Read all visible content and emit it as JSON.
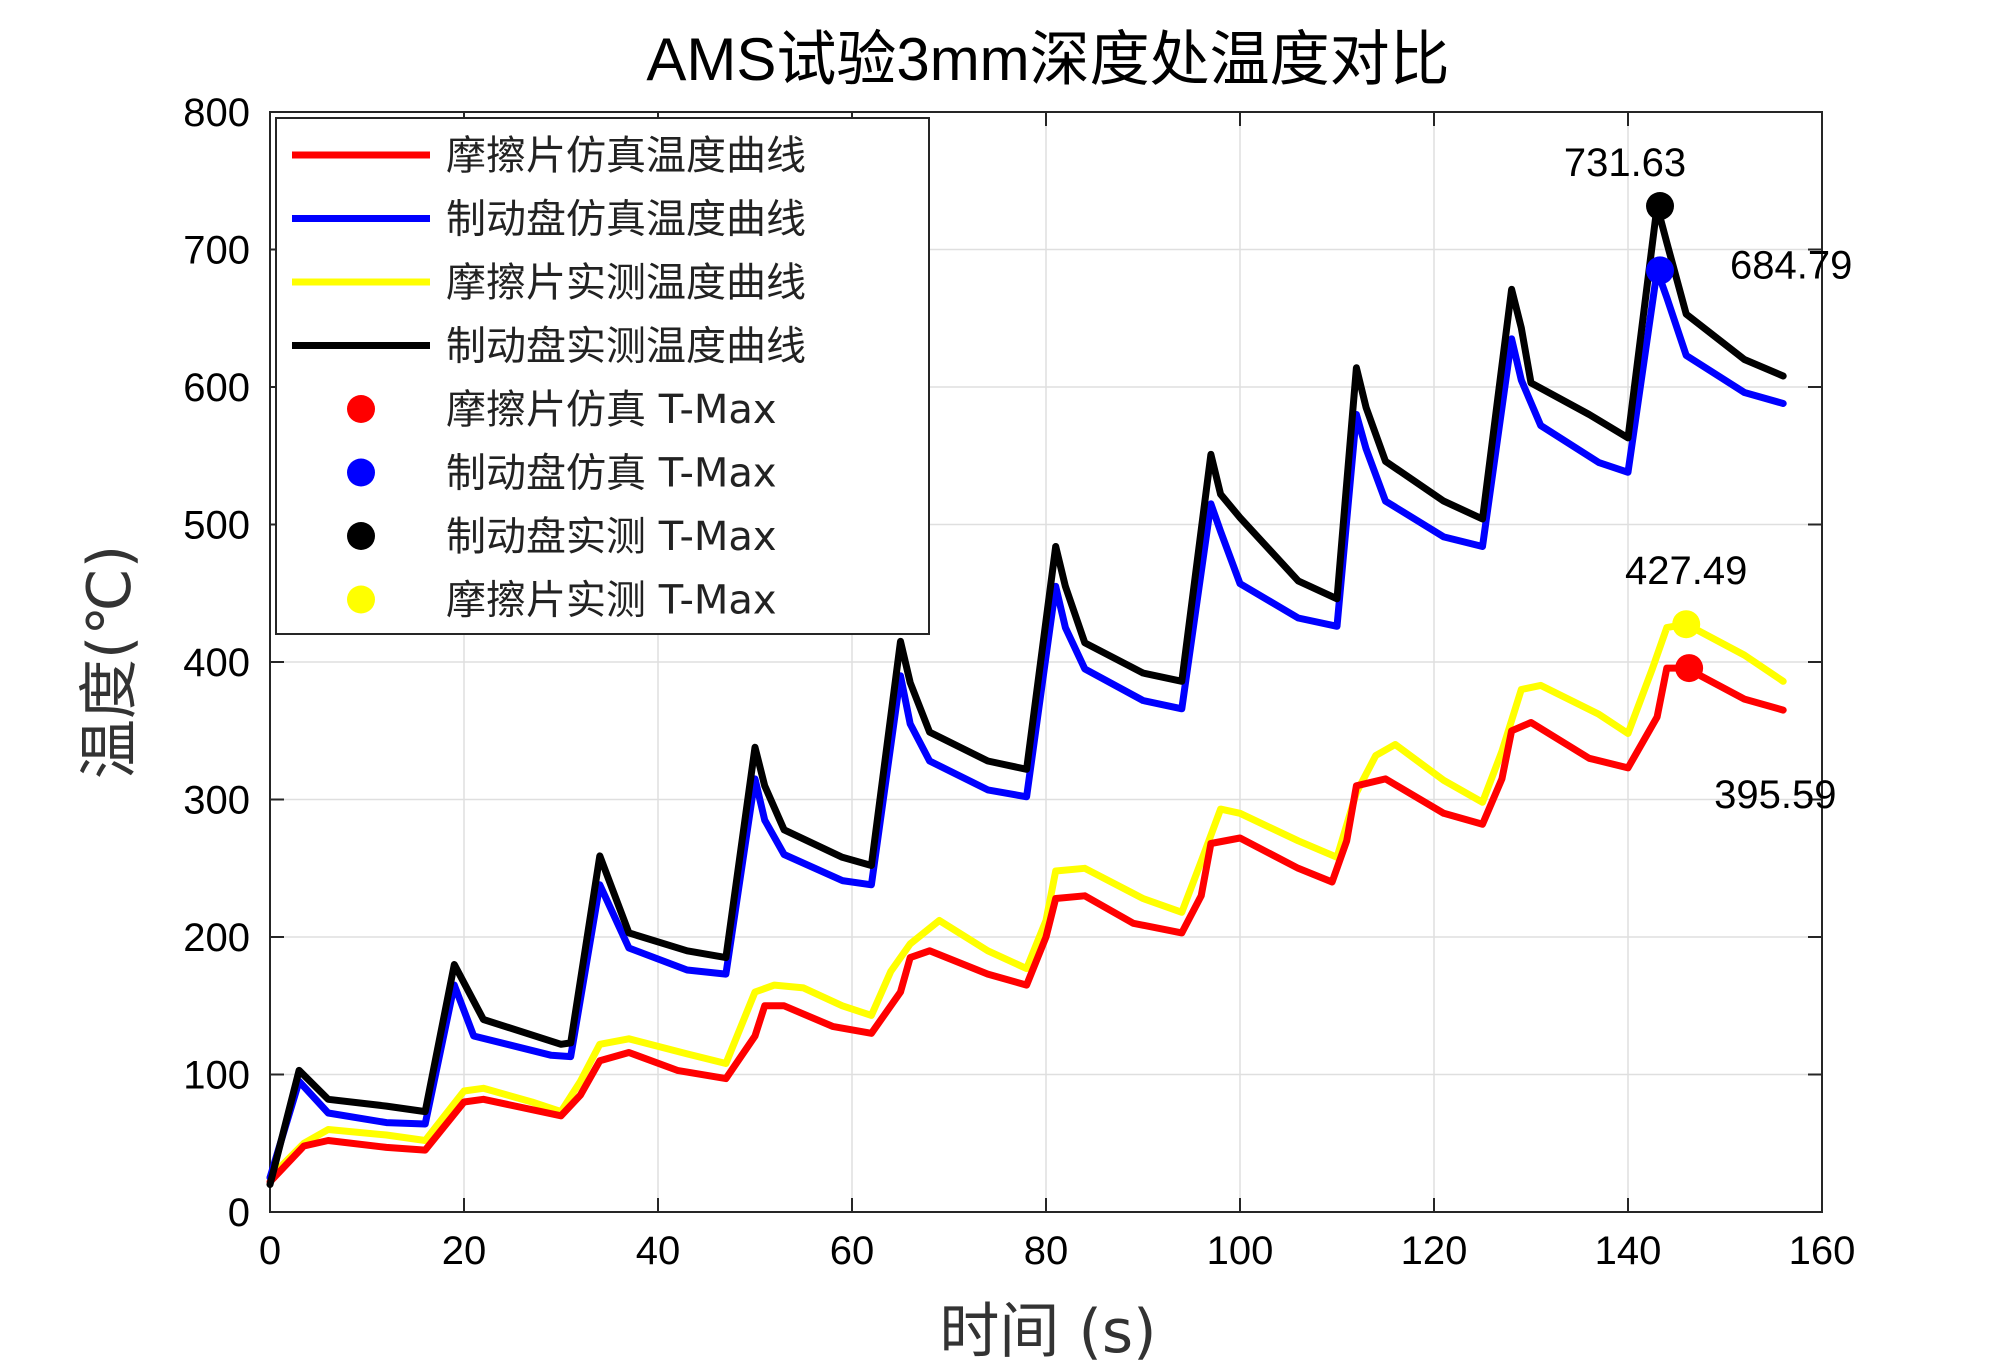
{
  "chart_data": {
    "type": "line",
    "title": "AMS试验3mm深度处温度对比",
    "xlabel": "时间 (s)",
    "ylabel": "温度(℃)",
    "xlim": [
      0,
      160
    ],
    "ylim": [
      0,
      800
    ],
    "xticks": [
      0,
      20,
      40,
      60,
      80,
      100,
      120,
      140,
      160
    ],
    "yticks": [
      0,
      100,
      200,
      300,
      400,
      500,
      600,
      700,
      800
    ],
    "xtick_labels": [
      "0",
      "20",
      "40",
      "60",
      "80",
      "100",
      "120",
      "140",
      "160"
    ],
    "ytick_labels": [
      "0",
      "100",
      "200",
      "300",
      "400",
      "500",
      "600",
      "700",
      "800"
    ],
    "grid": true,
    "legend_position": "top-left",
    "series": [
      {
        "name": "摩擦片仿真温度曲线",
        "color": "#ff0000",
        "x": [
          0,
          3.5,
          6,
          12,
          16,
          20,
          22,
          30,
          32,
          34,
          37,
          42,
          47,
          50,
          51,
          53,
          58,
          62,
          65,
          66,
          68,
          74,
          78,
          80,
          81,
          84,
          89,
          94,
          96,
          97,
          100,
          106,
          109.5,
          111,
          112,
          115,
          121,
          125,
          127,
          128,
          130,
          136,
          140,
          143,
          144,
          146,
          152,
          156
        ],
        "y": [
          22,
          48,
          52,
          47,
          45,
          80,
          82,
          70,
          85,
          110,
          116,
          103,
          97,
          128,
          150,
          150,
          135,
          130,
          160,
          185,
          190,
          173,
          165,
          200,
          228,
          230,
          210,
          203,
          230,
          268,
          272,
          250,
          240,
          270,
          310,
          315,
          290,
          282,
          315,
          350,
          356,
          330,
          323,
          360,
          395.59,
          395.59,
          373,
          365
        ]
      },
      {
        "name": "制动盘仿真温度曲线",
        "color": "#0000ff",
        "x": [
          0,
          3,
          6,
          12,
          16,
          19,
          21,
          29,
          31,
          34,
          37,
          43,
          47,
          50,
          51,
          53,
          59,
          62,
          65,
          66,
          68,
          74,
          78,
          81,
          82,
          84,
          90,
          94,
          97,
          98,
          100,
          106,
          110,
          112,
          113,
          115,
          121,
          125,
          128,
          129,
          131,
          137,
          140,
          143,
          144,
          146,
          152,
          156
        ],
        "y": [
          25,
          95,
          72,
          65,
          64,
          165,
          128,
          114,
          113,
          238,
          192,
          176,
          173,
          315,
          285,
          260,
          241,
          238,
          390,
          355,
          328,
          307,
          302,
          455,
          425,
          395,
          372,
          366,
          515,
          495,
          457,
          432,
          426,
          580,
          555,
          517,
          491,
          484,
          635,
          605,
          572,
          545,
          538,
          684.79,
          665,
          623,
          596,
          588
        ]
      },
      {
        "name": "摩擦片实测温度曲线",
        "color": "#ffff00",
        "x": [
          0,
          3.5,
          6,
          12,
          16,
          20,
          22,
          27,
          30,
          32,
          34,
          37,
          43,
          47,
          50,
          52,
          55,
          59,
          62,
          64,
          66,
          69,
          74,
          78,
          80,
          81,
          84,
          90,
          94,
          96,
          98,
          100,
          106,
          110,
          112,
          114,
          116,
          121,
          125,
          127,
          129,
          131,
          137,
          140,
          142.5,
          144,
          146,
          152,
          156
        ],
        "y": [
          25,
          50,
          60,
          56,
          52,
          88,
          90,
          80,
          73,
          95,
          122,
          126,
          115,
          108,
          160,
          165,
          163,
          150,
          143,
          175,
          195,
          212,
          190,
          177,
          212,
          248,
          250,
          228,
          218,
          255,
          293,
          290,
          270,
          258,
          305,
          332,
          340,
          314,
          298,
          335,
          380,
          383,
          362,
          348,
          395,
          425,
          427.49,
          405,
          386
        ]
      },
      {
        "name": "制动盘实测温度曲线",
        "color": "#000000",
        "x": [
          0,
          3,
          6,
          12,
          16,
          19,
          22,
          30,
          31,
          34,
          37,
          43,
          47,
          50,
          51,
          53,
          59,
          62,
          65,
          66,
          68,
          74,
          78,
          81,
          82,
          84,
          90,
          94,
          97,
          98,
          100,
          106,
          110,
          112,
          113,
          115,
          121,
          125,
          128,
          129,
          130,
          136,
          140,
          143,
          144,
          146,
          152,
          156
        ],
        "y": [
          20,
          103,
          82,
          77,
          73,
          180,
          140,
          122,
          123,
          259,
          203,
          190,
          185,
          338,
          310,
          278,
          258,
          252,
          415,
          385,
          349,
          328,
          322,
          484,
          455,
          414,
          392,
          386,
          551,
          522,
          505,
          459,
          446,
          614,
          585,
          546,
          517,
          504,
          671,
          643,
          603,
          580,
          563,
          731.63,
          705,
          653,
          620,
          608
        ]
      }
    ],
    "markers": [
      {
        "name": "摩擦片仿真 T-Max",
        "color": "#ff0000",
        "x": 146.3,
        "y": 395.59,
        "label": "395.59"
      },
      {
        "name": "制动盘仿真 T-Max",
        "color": "#0000ff",
        "x": 143.3,
        "y": 684.79,
        "label": "684.79"
      },
      {
        "name": "制动盘实测 T-Max",
        "color": "#000000",
        "x": 143.3,
        "y": 731.63,
        "label": "731.63"
      },
      {
        "name": "摩擦片实测 T-Max",
        "color": "#ffff00",
        "x": 146.0,
        "y": 427.49,
        "label": "427.49"
      }
    ],
    "legend": [
      {
        "label": "摩擦片仿真温度曲线",
        "kind": "line",
        "color": "#ff0000"
      },
      {
        "label": "制动盘仿真温度曲线",
        "kind": "line",
        "color": "#0000ff"
      },
      {
        "label": "摩擦片实测温度曲线",
        "kind": "line",
        "color": "#ffff00"
      },
      {
        "label": "制动盘实测温度曲线",
        "kind": "line",
        "color": "#000000"
      },
      {
        "label": "摩擦片仿真 T-Max",
        "kind": "marker",
        "color": "#ff0000"
      },
      {
        "label": "制动盘仿真 T-Max",
        "kind": "marker",
        "color": "#0000ff"
      },
      {
        "label": "制动盘实测 T-Max",
        "kind": "marker",
        "color": "#000000"
      },
      {
        "label": "摩擦片实测 T-Max",
        "kind": "marker",
        "color": "#ffff00"
      }
    ]
  }
}
